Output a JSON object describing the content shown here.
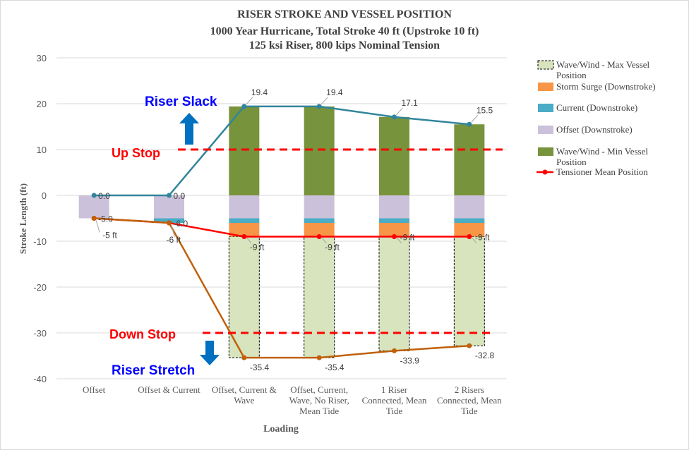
{
  "chart_data": {
    "type": "bar",
    "title": "RISER STROKE AND VESSEL POSITION",
    "subtitle_lines": [
      "1000 Year Hurricane, Total Stroke 40 ft (Upstroke 10 ft)",
      "125 ksi Riser, 800 kips Nominal Tension"
    ],
    "xlabel": "Loading",
    "ylabel": "Stroke Length (ft)",
    "ylim": [
      -40,
      30
    ],
    "yticks": [
      30,
      20,
      10,
      0,
      -10,
      -20,
      -30,
      -40
    ],
    "grid": true,
    "legend_position": "right",
    "categories": [
      [
        "Offset"
      ],
      [
        "Offset & Current"
      ],
      [
        "Offset, Current &",
        "Wave"
      ],
      [
        "Offset, Current,",
        "Wave, No Riser,",
        "Mean Tide"
      ],
      [
        "1 Riser",
        "Connected, Mean",
        "Tide"
      ],
      [
        "2 Risers",
        "Connected, Mean",
        "Tide"
      ]
    ],
    "series": [
      {
        "name": "Wave/Wind - Max Vessel Position",
        "legend_lines": [
          "Wave/Wind - Max Vessel",
          "Position"
        ],
        "color": "#d7e4bd",
        "style": "dashed-bar",
        "ranges": [
          null,
          null,
          [
            -9,
            -35.4
          ],
          [
            -9,
            -35.4
          ],
          [
            -9,
            -33.9
          ],
          [
            -9,
            -32.8
          ]
        ]
      },
      {
        "name": "Storm Surge (Downstroke)",
        "legend_lines": [
          "Storm Surge (Downstroke)"
        ],
        "color": "#f79646",
        "style": "bar",
        "ranges": [
          null,
          null,
          [
            -6,
            -9
          ],
          [
            -6,
            -9
          ],
          [
            -6,
            -9
          ],
          [
            -6,
            -9
          ]
        ]
      },
      {
        "name": "Current (Downstroke)",
        "legend_lines": [
          "Current (Downstroke)"
        ],
        "color": "#4bacc6",
        "style": "bar",
        "ranges": [
          null,
          [
            -5,
            -6
          ],
          [
            -5,
            -6
          ],
          [
            -5,
            -6
          ],
          [
            -5,
            -6
          ],
          [
            -5,
            -6
          ]
        ]
      },
      {
        "name": "Offset (Downstroke)",
        "legend_lines": [
          "Offset (Downstroke)"
        ],
        "color": "#ccc1da",
        "style": "bar",
        "ranges": [
          [
            0,
            -5
          ],
          [
            0,
            -5
          ],
          [
            0,
            -5
          ],
          [
            0,
            -5
          ],
          [
            0,
            -5
          ],
          [
            0,
            -5
          ]
        ]
      },
      {
        "name": "Wave/Wind - Min Vessel Position",
        "legend_lines": [
          "Wave/Wind - Min Vessel",
          "Position"
        ],
        "color": "#77933c",
        "style": "bar",
        "ranges": [
          null,
          null,
          [
            0,
            19.4
          ],
          [
            0,
            19.4
          ],
          [
            0,
            17.1
          ],
          [
            0,
            15.5
          ]
        ]
      },
      {
        "name": "Tensioner Mean Position",
        "legend_lines": [
          "Tensioner Mean Position"
        ],
        "color": "#ff0000",
        "style": "line",
        "values": [
          -5,
          -6,
          -9,
          -9,
          -9,
          -9
        ],
        "labels": [
          "-5 ft",
          "-6 ft",
          "-9 ft",
          "-9 ft",
          "-9 ft",
          "-9 ft"
        ]
      }
    ],
    "upper_line": {
      "color": "#31859c",
      "values": [
        0,
        0,
        19.4,
        19.4,
        17.1,
        15.5
      ],
      "labels": [
        "0.0",
        "0.0",
        "19.4",
        "19.4",
        "17.1",
        "15.5"
      ]
    },
    "lower_line": {
      "color": "#c0600a",
      "values": [
        -5,
        -6,
        -35.4,
        -35.4,
        -33.9,
        -32.8
      ],
      "labels": [
        "-5.0",
        "-6.0",
        "-35.4",
        "-35.4",
        "-33.9",
        "-32.8"
      ]
    },
    "annotations": {
      "riser_slack": "Riser Slack",
      "riser_stretch": "Riser Stretch",
      "up_stop": "Up Stop",
      "up_stop_value": 10,
      "down_stop": "Down Stop",
      "down_stop_value": -30,
      "label_color_blue": "#0000ff",
      "label_color_red": "#ff0000",
      "arrow_color": "#0070c0"
    }
  }
}
